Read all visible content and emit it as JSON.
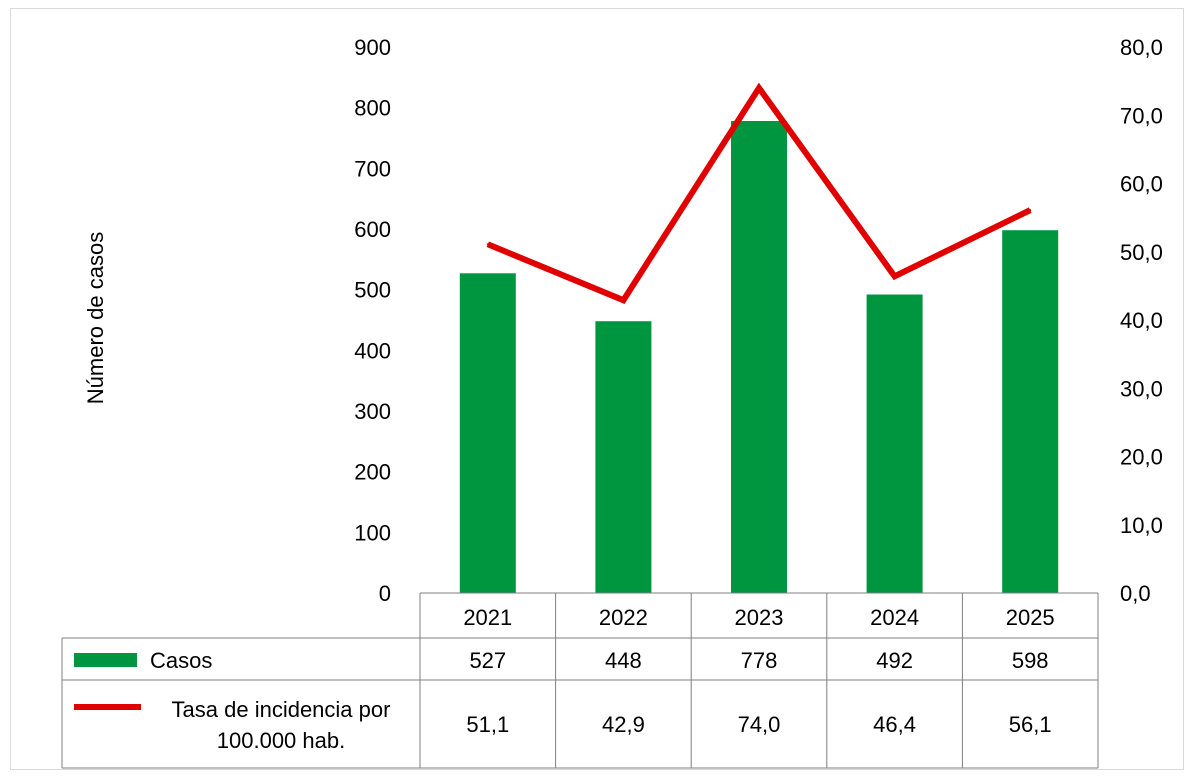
{
  "chart_data": {
    "type": "bar",
    "categories": [
      "2021",
      "2022",
      "2023",
      "2024",
      "2025"
    ],
    "series": [
      {
        "name": "Casos",
        "type": "bar",
        "axis": "left",
        "color": "#00963f",
        "values": [
          527,
          448,
          778,
          492,
          598
        ]
      },
      {
        "name": "Tasa de incidencia por 100.000 hab.",
        "type": "line",
        "axis": "right",
        "color": "#e00000",
        "values": [
          51.1,
          42.9,
          74.0,
          46.4,
          56.1
        ]
      }
    ],
    "table_values": [
      [
        "527",
        "448",
        "778",
        "492",
        "598"
      ],
      [
        "51,1",
        "42,9",
        "74,0",
        "46,4",
        "56,1"
      ]
    ],
    "ylabel": "Número de casos",
    "ylim": [
      0,
      900
    ],
    "y_ticks": [
      "0",
      "100",
      "200",
      "300",
      "400",
      "500",
      "600",
      "700",
      "800",
      "900"
    ],
    "y2lim": [
      0,
      80
    ],
    "y2_ticks": [
      "0,0",
      "10,0",
      "20,0",
      "30,0",
      "40,0",
      "50,0",
      "60,0",
      "70,0",
      "80,0"
    ],
    "legend_position": "data-table",
    "grid": false
  }
}
